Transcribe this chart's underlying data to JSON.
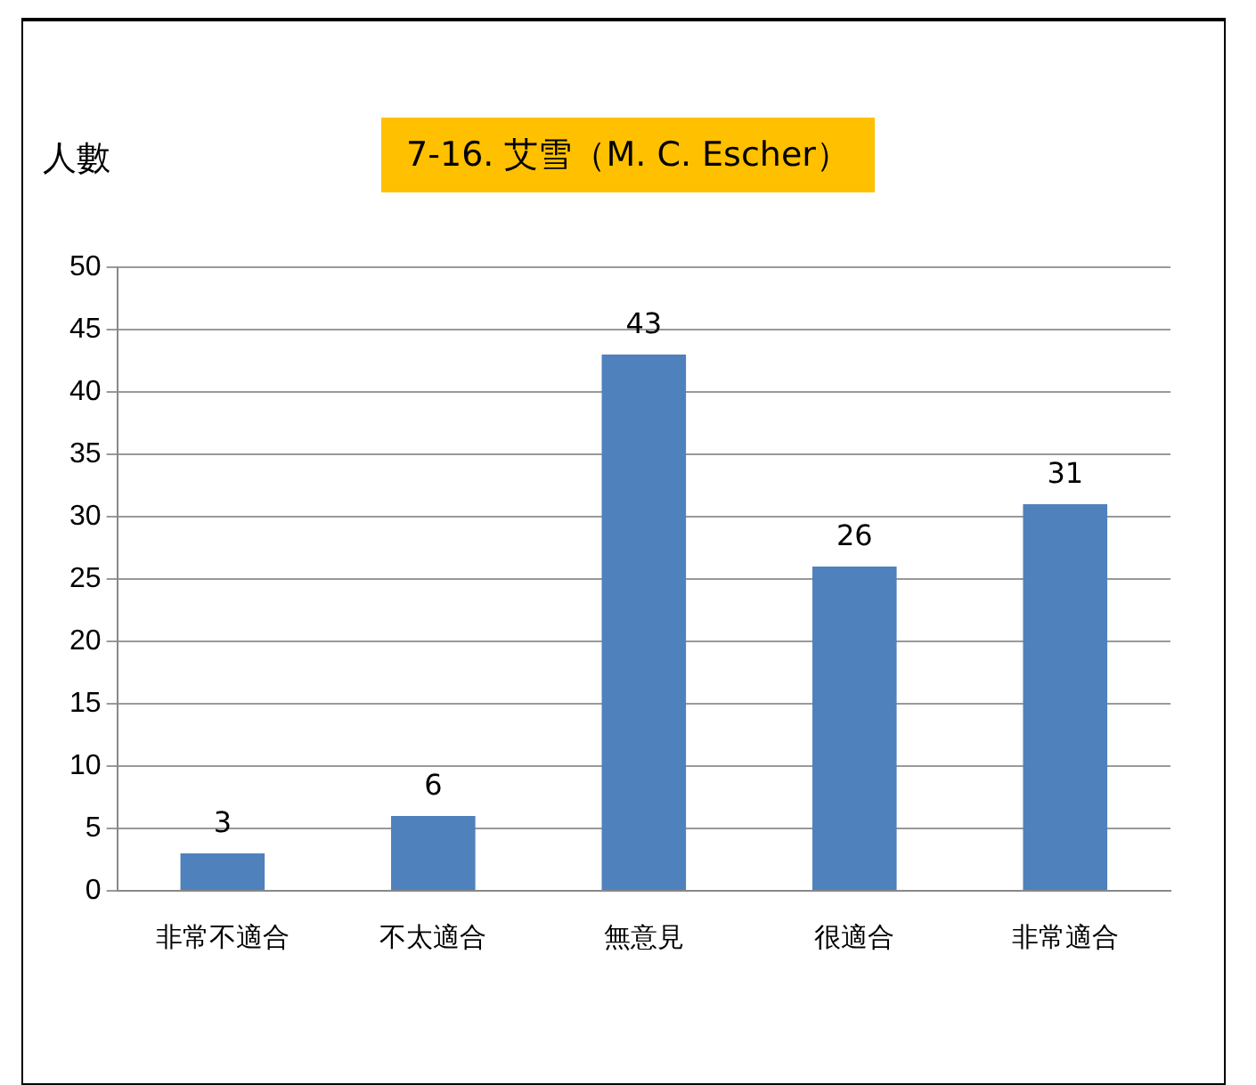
{
  "chart_data": {
    "type": "bar",
    "title": "7-16. 艾雪（M. C. Escher）",
    "ylabel": "人數",
    "categories": [
      "非常不適合",
      "不太適合",
      "無意見",
      "很適合",
      "非常適合"
    ],
    "values": [
      3,
      6,
      43,
      26,
      31
    ],
    "color": "#4f81bd",
    "ylim": [
      0,
      50
    ],
    "yticks": [
      0,
      5,
      10,
      15,
      20,
      25,
      30,
      35,
      40,
      45,
      50
    ],
    "grid": "y",
    "data_labels": true,
    "legend": false
  }
}
